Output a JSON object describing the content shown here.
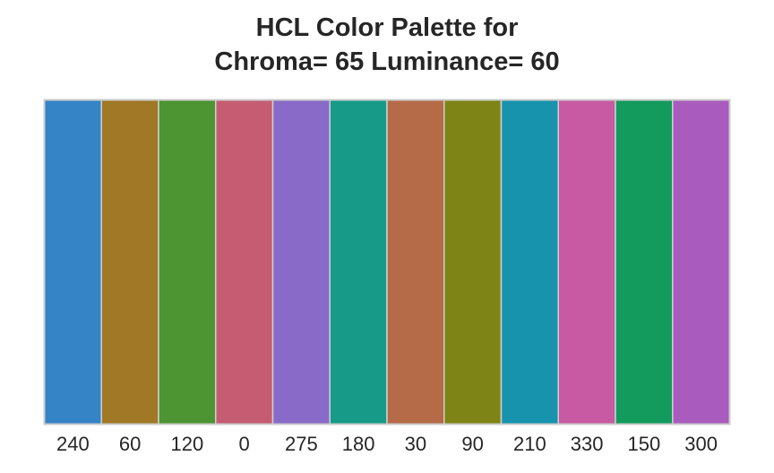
{
  "chart_data": {
    "type": "bar",
    "title": "HCL Color Palette for\nChroma= 65  Luminance= 60",
    "title_lines": [
      "HCL Color Palette for",
      "Chroma= 65  Luminance= 60"
    ],
    "xlabel": "",
    "ylabel": "",
    "categories": [
      "240",
      "60",
      "120",
      "0",
      "275",
      "180",
      "30",
      "90",
      "210",
      "330",
      "150",
      "300"
    ],
    "values": [
      1,
      1,
      1,
      1,
      1,
      1,
      1,
      1,
      1,
      1,
      1,
      1
    ],
    "colors": [
      "#3484c6",
      "#a07826",
      "#4d9433",
      "#c55c72",
      "#8a6ac8",
      "#179a88",
      "#b56a48",
      "#7e8415",
      "#1793ae",
      "#c75aa3",
      "#139a5d",
      "#a95cbd"
    ],
    "ylim": [
      0,
      1
    ],
    "grid": false,
    "legend": "none",
    "frame_color": "#cccccc",
    "separator_color": "#d0d0d0"
  }
}
